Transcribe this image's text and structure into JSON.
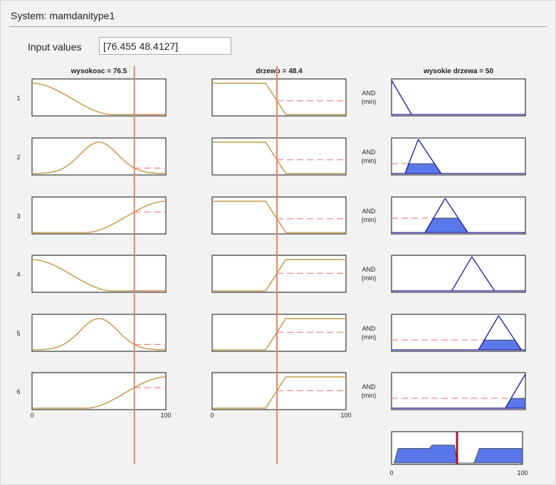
{
  "system": {
    "title": "System: mamdanitype1"
  },
  "input": {
    "label": "Input values",
    "value": "[76.455 48.4127]"
  },
  "columns": [
    {
      "title": "wysokosc = 76.5",
      "value": 76.455
    },
    {
      "title": "drzewo = 48.4",
      "value": 48.4127
    },
    {
      "title": "wysokie drzewa = 50",
      "value": 50
    }
  ],
  "rule_numbers": [
    "1",
    "2",
    "3",
    "4",
    "5",
    "6"
  ],
  "operator": {
    "label": "AND",
    "sub": "(min)"
  },
  "axis": {
    "min_label": "0",
    "max_label": "100"
  },
  "rules": [
    {
      "input1_mf": "z-shaped",
      "input2_mf": "decreasing",
      "output_mf": "low",
      "firing": 0.0
    },
    {
      "input1_mf": "gauss-mid",
      "input2_mf": "decreasing",
      "output_mf": "mid-low",
      "firing": 0.29
    },
    {
      "input1_mf": "s-shaped",
      "input2_mf": "decreasing",
      "output_mf": "mid",
      "firing": 0.42
    },
    {
      "input1_mf": "z-shaped",
      "input2_mf": "increasing",
      "output_mf": "mid-high",
      "firing": 0.0
    },
    {
      "input1_mf": "gauss-mid",
      "input2_mf": "increasing",
      "output_mf": "high",
      "firing": 0.29
    },
    {
      "input1_mf": "s-shaped",
      "input2_mf": "increasing",
      "output_mf": "very-high",
      "firing": 0.29
    }
  ],
  "colors": {
    "mf_curve": "#c39a4f",
    "input_line": "#d98a6a",
    "dashed": "#f08080",
    "fill": "#5b78ea",
    "output_outline": "#1a1a9a",
    "centroid": "#9b1b30"
  }
}
